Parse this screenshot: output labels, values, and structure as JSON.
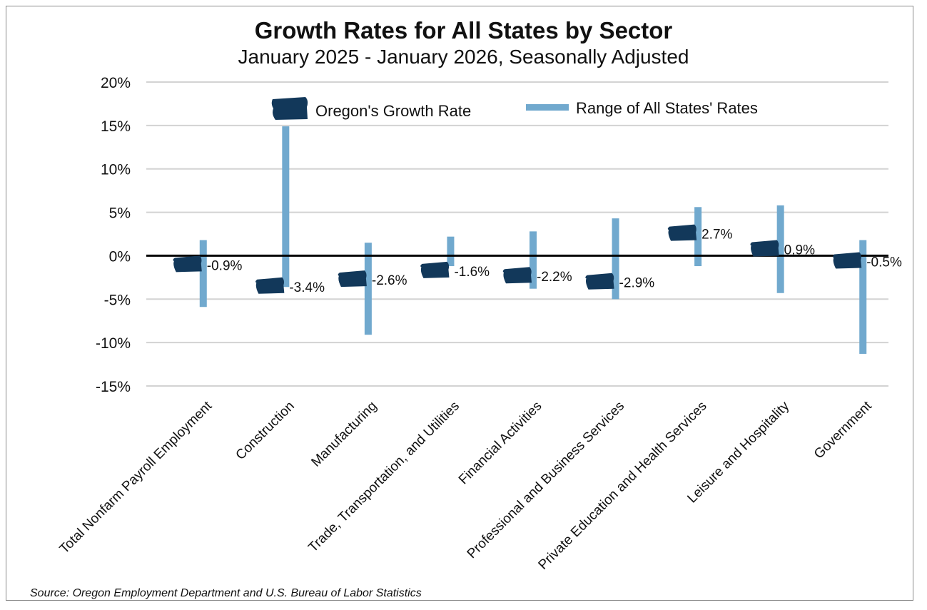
{
  "chart_data": {
    "type": "range-with-markers",
    "title": "Growth Rates for All States by Sector",
    "subtitle": "January 2025 - January 2026, Seasonally Adjusted",
    "source": "Source: Oregon Employment Department and U.S. Bureau of Labor Statistics",
    "y_tick_labels": [
      "20%",
      "15%",
      "10%",
      "5%",
      "0%",
      "-5%",
      "-10%",
      "-15%"
    ],
    "y_ticks": [
      20,
      15,
      10,
      5,
      0,
      -5,
      -10,
      -15
    ],
    "ylim": [
      -15,
      20
    ],
    "grid": true,
    "legend": {
      "placement": "top",
      "oregon_label": "Oregon's Growth Rate",
      "range_label": "Range of All States' Rates"
    },
    "colors": {
      "oregon_marker": "#12385a",
      "range_bar": "#71a9ce",
      "gridline": "#d3d3d3",
      "zero_line": "#000000"
    },
    "categories": [
      "Total Nonfarm Payroll Employment",
      "Construction",
      "Manufacturing",
      "Trade, Transportation, and Utilities",
      "Financial Activities",
      "Professional and Business Services",
      "Private Education and Health Services",
      "Leisure and Hospitality",
      "Government"
    ],
    "series": [
      {
        "name": "Oregon's Growth Rate",
        "values": [
          -0.9,
          -3.4,
          -2.6,
          -1.6,
          -2.2,
          -2.9,
          2.7,
          0.9,
          -0.5
        ]
      },
      {
        "name": "Range of All States' Rates",
        "low": [
          -5.9,
          -3.6,
          -9.1,
          -1.2,
          -3.8,
          -5.0,
          -1.2,
          -4.3,
          -11.3
        ],
        "high": [
          1.8,
          14.9,
          1.5,
          2.2,
          2.8,
          4.3,
          5.6,
          5.8,
          1.8
        ]
      }
    ],
    "value_labels": [
      "-0.9%",
      "-3.4%",
      "-2.6%",
      "-1.6%",
      "-2.2%",
      "-2.9%",
      "2.7%",
      "0.9%",
      "-0.5%"
    ]
  }
}
